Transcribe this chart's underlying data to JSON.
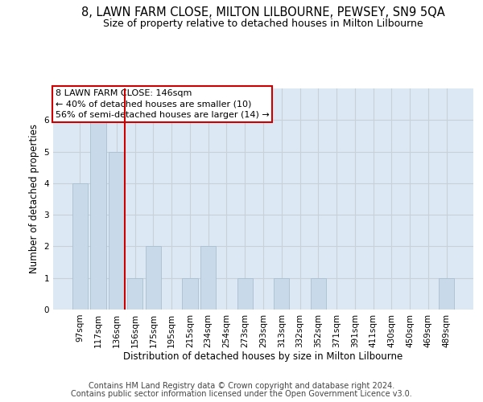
{
  "title": "8, LAWN FARM CLOSE, MILTON LILBOURNE, PEWSEY, SN9 5QA",
  "subtitle": "Size of property relative to detached houses in Milton Lilbourne",
  "xlabel": "Distribution of detached houses by size in Milton Lilbourne",
  "ylabel": "Number of detached properties",
  "categories": [
    "97sqm",
    "117sqm",
    "136sqm",
    "156sqm",
    "175sqm",
    "195sqm",
    "215sqm",
    "234sqm",
    "254sqm",
    "273sqm",
    "293sqm",
    "313sqm",
    "332sqm",
    "352sqm",
    "371sqm",
    "391sqm",
    "411sqm",
    "430sqm",
    "450sqm",
    "469sqm",
    "489sqm"
  ],
  "values": [
    4,
    6,
    5,
    1,
    2,
    0,
    1,
    2,
    0,
    1,
    0,
    1,
    0,
    1,
    0,
    0,
    0,
    0,
    0,
    0,
    1
  ],
  "bar_color": "#c8daea",
  "bar_edgecolor": "#aabfcf",
  "subject_bar_index": 2,
  "subject_line_color": "#cc0000",
  "annotation_line1": "8 LAWN FARM CLOSE: 146sqm",
  "annotation_line2": "← 40% of detached houses are smaller (10)",
  "annotation_line3": "56% of semi-detached houses are larger (14) →",
  "annotation_box_edgecolor": "#cc0000",
  "annotation_box_facecolor": "#ffffff",
  "ylim_max": 7,
  "yticks": [
    0,
    1,
    2,
    3,
    4,
    5,
    6
  ],
  "grid_color": "#c8d0d8",
  "plot_bg_color": "#dce8f4",
  "footer_line1": "Contains HM Land Registry data © Crown copyright and database right 2024.",
  "footer_line2": "Contains public sector information licensed under the Open Government Licence v3.0.",
  "title_fontsize": 10.5,
  "subtitle_fontsize": 9,
  "axis_label_fontsize": 8.5,
  "tick_fontsize": 7.5,
  "annotation_fontsize": 8,
  "footer_fontsize": 7
}
